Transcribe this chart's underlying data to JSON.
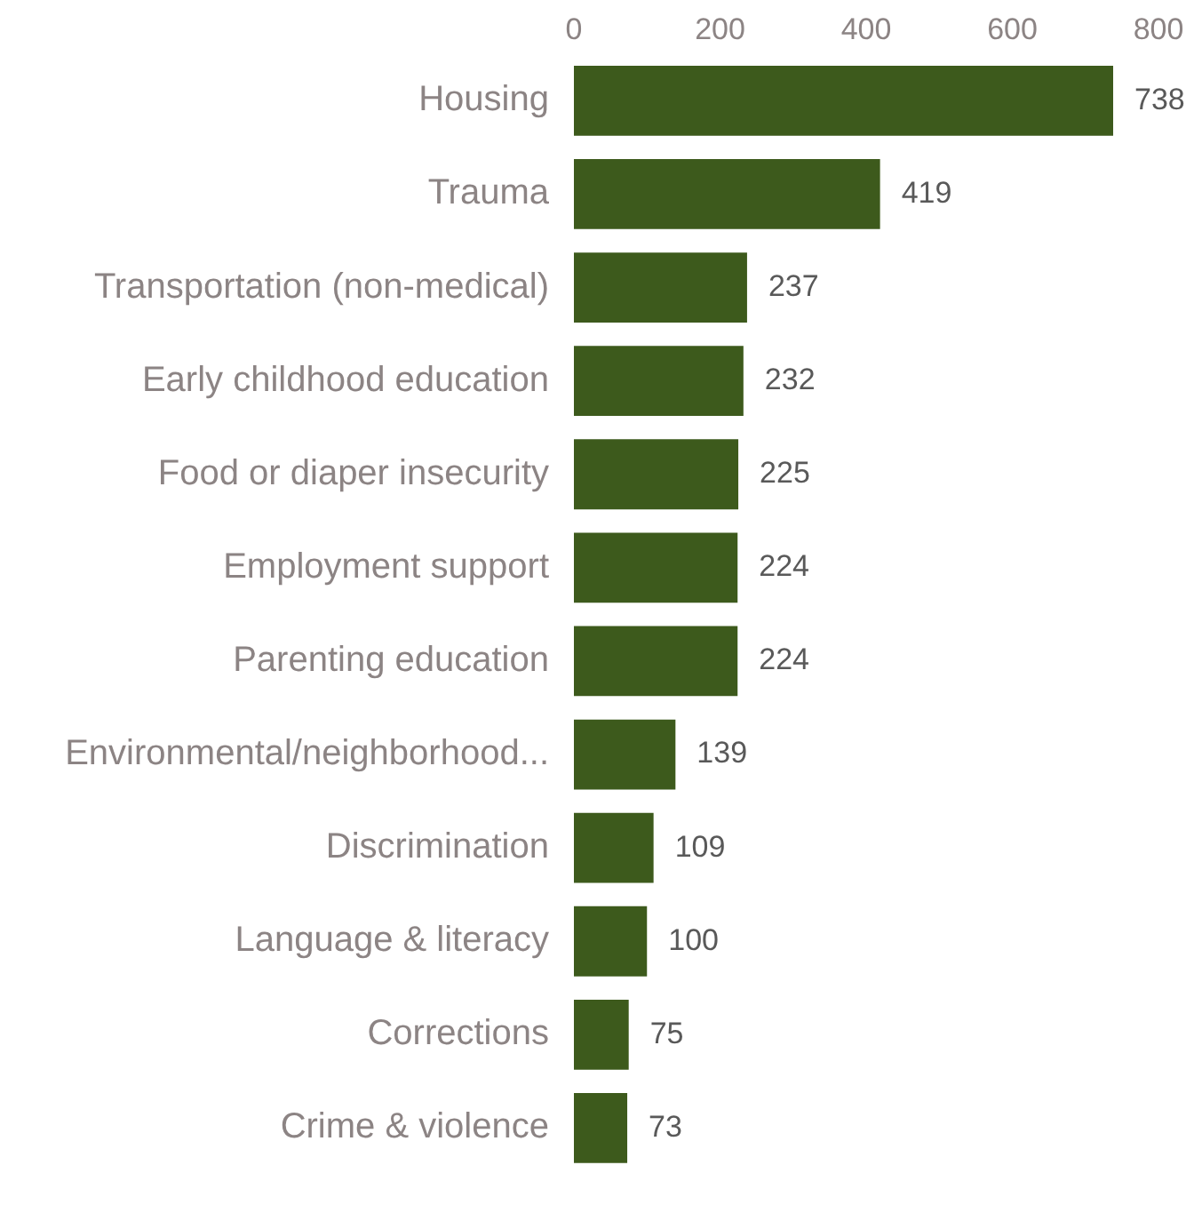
{
  "chart_data": {
    "type": "bar",
    "orientation": "horizontal",
    "categories": [
      "Housing",
      "Trauma",
      "Transportation (non-medical)",
      "Early childhood education",
      "Food or diaper insecurity",
      "Employment support",
      "Parenting education",
      "Environmental/neighborhood...",
      "Discrimination",
      "Language & literacy",
      "Corrections",
      "Crime & violence"
    ],
    "values": [
      738,
      419,
      237,
      232,
      225,
      224,
      224,
      139,
      109,
      100,
      75,
      73
    ],
    "color": "#3d5a1c",
    "xlim": [
      0,
      800
    ],
    "xticks": [
      0,
      200,
      400,
      600,
      800
    ],
    "grid": false,
    "legend": false,
    "data_labels": true
  }
}
